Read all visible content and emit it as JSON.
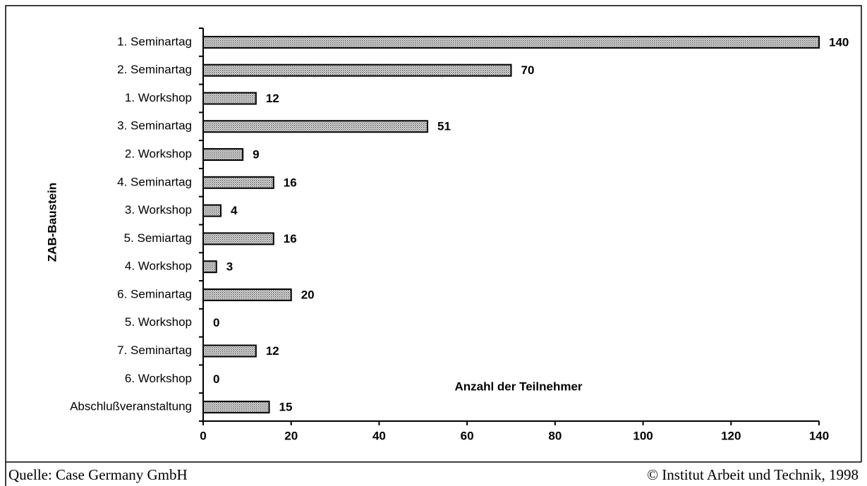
{
  "chart_data": {
    "type": "bar",
    "orientation": "horizontal",
    "x_label": "Anzahl der Teilnehmer",
    "y_label": "ZAB-Baustein",
    "categories": [
      "1. Seminartag",
      "2. Seminartag",
      "1. Workshop",
      "3. Seminartag",
      "2. Workshop",
      "4. Seminartag",
      "3. Workshop",
      "5. Semiartag",
      "4. Workshop",
      "6. Seminartag",
      "5. Workshop",
      "7. Seminartag",
      "6. Workshop",
      "Abschlußveranstaltung"
    ],
    "values": [
      140,
      70,
      12,
      51,
      9,
      16,
      4,
      16,
      3,
      20,
      0,
      12,
      0,
      15
    ],
    "color": "#b0b0b0",
    "xlim": [
      0,
      140
    ],
    "xticks": [
      0,
      20,
      40,
      60,
      80,
      100,
      120,
      140
    ],
    "grid": false
  },
  "source": "Quelle: Case Germany GmbH",
  "credit": "© Institut Arbeit und Technik, 1998"
}
